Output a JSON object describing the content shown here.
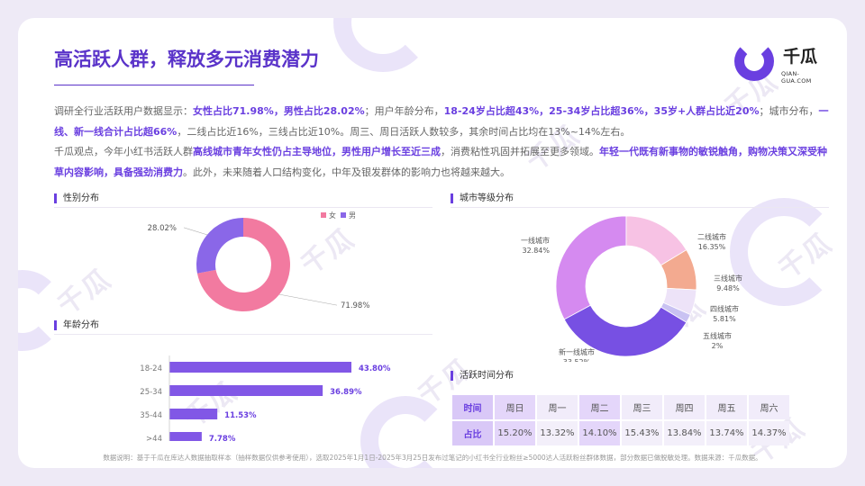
{
  "title": "高活跃人群，释放多元消费潜力",
  "logo": {
    "name": "千瓜",
    "sub": "QIAN-GUA.COM"
  },
  "watermark": {
    "text": "千瓜",
    "sub": "QIAN-GUA.COM"
  },
  "description": {
    "p1_a": "调研全行业活跃用户数据显示：",
    "p1_b": "女性占比71.98%，男性占比28.02%",
    "p1_c": "；用户年龄分布，",
    "p1_d": "18-24岁占比超43%，25-34岁占比超36%，35岁+人群占比近20%",
    "p1_e": "；城市分布，",
    "p1_f": "一线、新一线合计占比超66%",
    "p1_g": "，二线占比近16%，三线占比近10%。周三、周日活跃人数较多，其余时间占比均在13%~14%左右。",
    "p2_a": "千瓜观点，今年小红书活跃人群",
    "p2_b": "高线城市青年女性仍占主导地位，男性用户增长至近三成",
    "p2_c": "，消费粘性巩固并拓展至更多领域。",
    "p2_d": "年轻一代既有新事物的敏锐触角，购物决策又深受种草内容影响，具备强劲消费力",
    "p2_e": "。此外，未来随着人口结构变化，中年及银发群体的影响力也将越来越大。"
  },
  "sections": {
    "gender": "性别分布",
    "age": "年龄分布",
    "city": "城市等级分布",
    "time": "活跃时间分布"
  },
  "gender_legend": {
    "female": "女",
    "male": "男"
  },
  "colors": {
    "accent": "#6a3fe0",
    "female": "#f27aa0",
    "male": "#8a67e8",
    "bar": "#8157e6",
    "city": [
      "#d58af0",
      "#f7c2e4",
      "#f3aa90",
      "#ede3f8",
      "#c9c2f2",
      "#7750e3"
    ]
  },
  "chart_data": [
    {
      "type": "pie",
      "title": "性别分布",
      "series": [
        {
          "name": "女",
          "value": 71.98,
          "label": "71.98%"
        },
        {
          "name": "男",
          "value": 28.02,
          "label": "28.02%"
        }
      ],
      "legend": "top-right"
    },
    {
      "type": "bar",
      "title": "年龄分布",
      "orientation": "horizontal",
      "categories": [
        "18-24",
        "25-34",
        "35-44",
        ">44"
      ],
      "values": [
        43.8,
        36.89,
        11.53,
        7.78
      ],
      "labels": [
        "43.80%",
        "36.89%",
        "11.53%",
        "7.78%"
      ]
    },
    {
      "type": "pie",
      "title": "城市等级分布",
      "series": [
        {
          "name": "一线城市",
          "value": 32.84,
          "label": "32.84%"
        },
        {
          "name": "二线城市",
          "value": 16.35,
          "label": "16.35%"
        },
        {
          "name": "三线城市",
          "value": 9.48,
          "label": "9.48%"
        },
        {
          "name": "四线城市",
          "value": 5.81,
          "label": "5.81%"
        },
        {
          "name": "五线城市",
          "value": 2,
          "label": "2%"
        },
        {
          "name": "新一线城市",
          "value": 33.52,
          "label": "33.52%"
        }
      ]
    },
    {
      "type": "table",
      "title": "活跃时间分布",
      "header_label": "时间",
      "row_label": "占比",
      "columns": [
        "周日",
        "周一",
        "周二",
        "周三",
        "周四",
        "周五",
        "周六"
      ],
      "values": [
        "15.20%",
        "13.32%",
        "14.10%",
        "15.43%",
        "13.84%",
        "13.74%",
        "14.37%"
      ]
    }
  ],
  "footnote": "数据说明：基于千瓜在库达人数据抽取样本（抽样数据仅供参考使用），选取2025年1月1日-2025年3月25日发布过笔记的小红书全行业粉丝≥5000达人活跃粉丝群体数据，部分数据已做脱敏处理。数据来源：千瓜数据。"
}
